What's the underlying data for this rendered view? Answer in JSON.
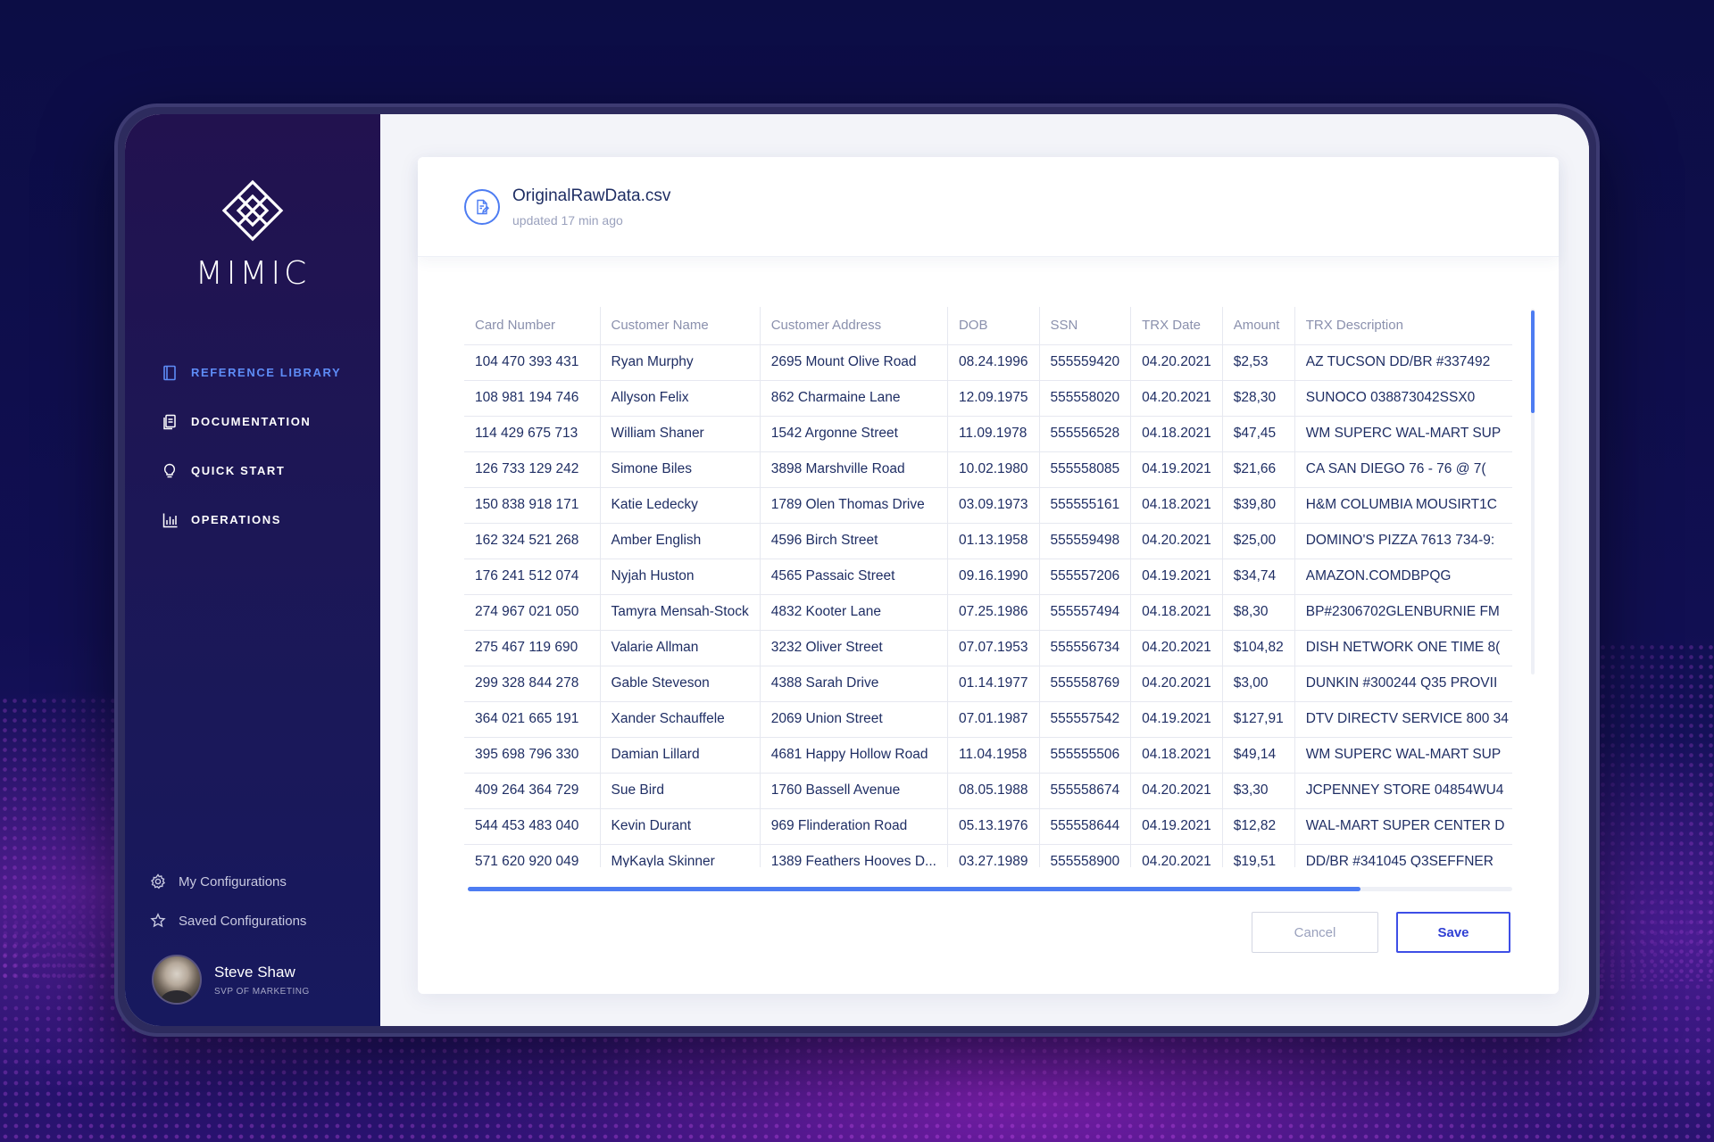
{
  "app": {
    "brand": "MIMIC"
  },
  "sidebar": {
    "nav": [
      {
        "label": "REFERENCE LIBRARY",
        "icon": "book-icon",
        "active": true
      },
      {
        "label": "DOCUMENTATION",
        "icon": "document-icon",
        "active": false
      },
      {
        "label": "QUICK START",
        "icon": "lightbulb-icon",
        "active": false
      },
      {
        "label": "OPERATIONS",
        "icon": "bar-chart-icon",
        "active": false
      }
    ],
    "configs": [
      {
        "label": "My Configurations",
        "icon": "gear-icon"
      },
      {
        "label": "Saved Configurations",
        "icon": "star-icon"
      }
    ],
    "user": {
      "name": "Steve Shaw",
      "role": "SVP OF MARKETING"
    }
  },
  "file": {
    "name": "OriginalRawData.csv",
    "updated": "updated 17 min ago"
  },
  "table": {
    "columns": [
      "Card Number",
      "Customer Name",
      "Customer Address",
      "DOB",
      "SSN",
      "TRX Date",
      "Amount",
      "TRX Description"
    ],
    "rows": [
      [
        "104 470 393 431",
        "Ryan Murphy",
        "2695 Mount Olive Road",
        "08.24.1996",
        "555559420",
        "04.20.2021",
        "$2,53",
        "AZ TUCSON DD/BR #337492"
      ],
      [
        "108 981 194 746",
        "Allyson Felix",
        "862 Charmaine Lane",
        "12.09.1975",
        "555558020",
        "04.20.2021",
        "$28,30",
        "SUNOCO 038873042SSX0"
      ],
      [
        "114 429 675 713",
        "William Shaner",
        "1542 Argonne Street",
        "11.09.1978",
        "555556528",
        "04.18.2021",
        "$47,45",
        "WM SUPERC WAL-MART SUP"
      ],
      [
        "126 733 129 242",
        "Simone Biles",
        "3898 Marshville Road",
        "10.02.1980",
        "555558085",
        "04.19.2021",
        "$21,66",
        "CA SAN DIEGO    76 - 76 @ 7("
      ],
      [
        "150 838 918 171",
        "Katie Ledecky",
        "1789 Olen Thomas Drive",
        "03.09.1973",
        "555555161",
        "04.18.2021",
        "$39,80",
        "H&M COLUMBIA MOUSIRT1C"
      ],
      [
        "162 324 521 268",
        "Amber English",
        "4596 Birch Street",
        "01.13.1958",
        "555559498",
        "04.20.2021",
        "$25,00",
        "DOMINO'S PIZZA 7613 734-9:"
      ],
      [
        "176 241 512 074",
        "Nyjah Huston",
        "4565 Passaic Street",
        "09.16.1990",
        "555557206",
        "04.19.2021",
        "$34,74",
        "AMAZON.COMDBPQG"
      ],
      [
        "274 967 021 050",
        "Tamyra Mensah-Stock",
        "4832 Kooter Lane",
        "07.25.1986",
        "555557494",
        "04.18.2021",
        "$8,30",
        "BP#2306702GLENBURNIE FM"
      ],
      [
        "275 467 119 690",
        "Valarie Allman",
        "3232 Oliver Street",
        "07.07.1953",
        "555556734",
        "04.20.2021",
        "$104,82",
        "DISH NETWORK ONE TIME 8("
      ],
      [
        "299 328 844 278",
        "Gable Steveson",
        "4388 Sarah Drive",
        "01.14.1977",
        "555558769",
        "04.20.2021",
        "$3,00",
        "DUNKIN #300244 Q35 PROVII"
      ],
      [
        "364 021 665 191",
        "Xander Schauffele",
        "2069 Union Street",
        "07.01.1987",
        "555557542",
        "04.19.2021",
        "$127,91",
        "DTV DIRECTV SERVICE 800 34"
      ],
      [
        "395 698 796 330",
        "Damian Lillard",
        "4681 Happy Hollow Road",
        "11.04.1958",
        "555555506",
        "04.18.2021",
        "$49,14",
        "WM SUPERC WAL-MART SUP"
      ],
      [
        "409 264 364 729",
        "Sue Bird",
        "1760 Bassell Avenue",
        "08.05.1988",
        "555558674",
        "04.20.2021",
        "$3,30",
        "JCPENNEY STORE 04854WU4"
      ],
      [
        "544 453 483 040",
        "Kevin Durant",
        "969 Flinderation Road",
        "05.13.1976",
        "555558644",
        "04.19.2021",
        "$12,82",
        "WAL-MART SUPER CENTER  D"
      ],
      [
        "571 620 920 049",
        "MyKayla Skinner",
        "1389 Feathers Hooves D...",
        "03.27.1989",
        "555558900",
        "04.20.2021",
        "$19,51",
        "DD/BR #341045 Q3SEFFNER"
      ]
    ]
  },
  "actions": {
    "cancel": "Cancel",
    "save": "Save"
  },
  "colors": {
    "accent": "#4d7cf2",
    "save_border": "#3d4ee6",
    "sidebar": "#1c1756",
    "text": "#1f2e64"
  }
}
